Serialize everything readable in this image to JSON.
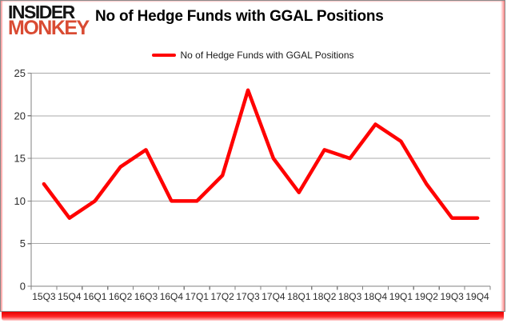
{
  "logo": {
    "line1": "INSIDER",
    "line2": "MONKEY",
    "line1_color": "#141414",
    "line2_color": "#d94b33"
  },
  "title": "No of Hedge Funds with GGAL Positions",
  "legend": {
    "label": "No of Hedge Funds with GGAL Positions",
    "swatch_color": "#ff0000"
  },
  "chart_data": {
    "type": "line",
    "title": "No of Hedge Funds with GGAL Positions",
    "categories": [
      "15Q3",
      "15Q4",
      "16Q1",
      "16Q2",
      "16Q3",
      "16Q4",
      "17Q1",
      "17Q2",
      "17Q3",
      "17Q4",
      "18Q1",
      "18Q2",
      "18Q3",
      "18Q4",
      "19Q1",
      "19Q2",
      "19Q3",
      "19Q4"
    ],
    "series": [
      {
        "name": "No of Hedge Funds with GGAL Positions",
        "color": "#ff0000",
        "values": [
          12,
          8,
          10,
          14,
          16,
          10,
          10,
          13,
          23,
          15,
          11,
          16,
          15,
          19,
          17,
          12,
          8,
          8
        ]
      }
    ],
    "xlabel": "",
    "ylabel": "",
    "ylim": [
      0,
      25
    ],
    "yticks": [
      0,
      5,
      10,
      15,
      20,
      25
    ],
    "grid": true,
    "legend_position": "top-center"
  },
  "colors": {
    "line": "#ff0000",
    "gridline": "#a8a8a8",
    "axis": "#808080",
    "tick_label": "#2b2b2b",
    "frame_border": "#8a8a8a",
    "red_bar": "#e80000"
  }
}
